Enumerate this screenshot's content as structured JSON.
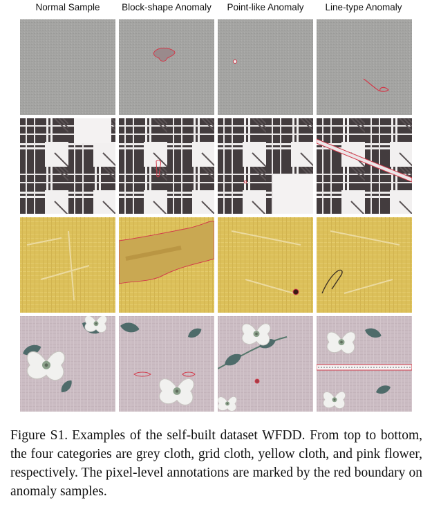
{
  "columns": [
    "Normal Sample",
    "Block-shape Anomaly",
    "Point-like Anomaly",
    "Line-type Anomaly"
  ],
  "rows": [
    "grey cloth",
    "grid cloth",
    "yellow cloth",
    "pink flower"
  ],
  "caption": {
    "label": "Figure S1.",
    "text": "Examples of the self-built dataset WFDD. From top to bottom, the four categories are grey cloth, grid cloth, yellow cloth, and pink flower, respectively. The pixel-level annotations are marked by the red boundary on anomaly samples."
  },
  "colors": {
    "grey_cloth": "#a3a3a1",
    "grid_dark": "#433c3e",
    "yellow_cloth": "#dcc05a",
    "pink_flower": "#cbbcc3",
    "annotation": "#d23a4a"
  }
}
